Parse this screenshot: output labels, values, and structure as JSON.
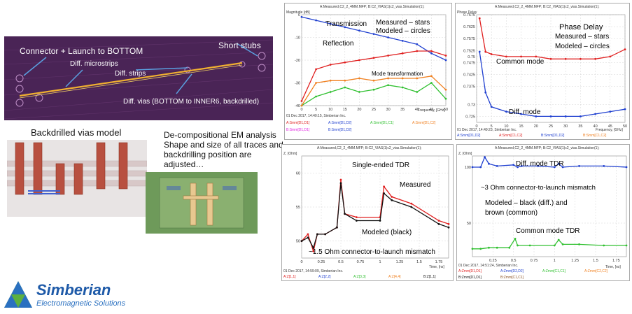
{
  "board": {
    "label_connector": "Connector + Launch to BOTTOM",
    "label_short_stubs": "Short stubs",
    "label_microstrips": "Diff. microstrips",
    "label_strips": "Diff. strips",
    "label_vias": "Diff. vias (BOTTOM to INNER6, backdrilled)"
  },
  "vias_model": {
    "title": "Backdrilled vias model"
  },
  "em_analysis": {
    "line1": "De-compositional EM analysis",
    "line2": "Shape and size of all traces and",
    "line3": "backdrilling position are",
    "line4": "adjusted…"
  },
  "chart1": {
    "header": "A:Measured,C2_2_4MM.MFP; B:C2_VIAS(1)c2_vias.Simulation(1);",
    "ylabel": "Magnitude [dB]",
    "xlabel": "Frequency, [GHz]",
    "footer": "01 Dec 2017, 14:40:15, Simberian Inc.",
    "ann_transmission": "Transmission",
    "ann_reflection": "Reflection",
    "ann_measured": "Measured – stars",
    "ann_modeled": "Modeled – circles",
    "ann_mode": "Mode transformation",
    "legend": [
      "A:Smm[D1,D1]",
      "A:Smm[D1,D2]",
      "A:Smm[D1,C1]",
      "A:Smm[D1,C2]",
      "B:Smm[D1,D1]",
      "B:Smm[D1,D2]"
    ]
  },
  "chart2": {
    "header": "A:Measured,C2_2_4MM.MFP; B:C2_VIAS(1)c2_vias.Simulation(1);",
    "ylabel": "Phase Delay",
    "xlabel": "Frequency, [GHz]",
    "footer": "01 Dec 2017, 14:49:23, Simberian Inc.",
    "ann_phase": "Phase Delay",
    "ann_measured": "Measured – stars",
    "ann_modeled": "Modeled – circles",
    "ann_common": "Common mode",
    "ann_diff": "Diff. mode",
    "legend": [
      "A:Smm[D1,D2]",
      "A:Smm[C1,C2]",
      "B:Smm[D1,D2]",
      "B:Smm[C1,C2]"
    ]
  },
  "chart3": {
    "header": "A:Measured,C2_2_4MM.MFP; B:C2_VIAS(1)c2_vias.Simulation(1);",
    "ylabel": "Z, [Ohm]",
    "xlabel": "Time, [ns]",
    "footer": "01 Dec 2017, 14:59:09, Simberian Inc.",
    "ann_tdr": "Single-ended TDR",
    "ann_measured": "Measured",
    "ann_modeled": "Modeled (black)",
    "ann_mismatch": "~1.5 Ohm connector-to-launch mismatch",
    "legend": [
      "A:Z[1,1]",
      "A:Z[2,2]",
      "A:Z[3,3]",
      "A:Z[4,4]",
      "B:Z[1,1]"
    ]
  },
  "chart4": {
    "header": "A:Measured,C2_2_4MM.MFP; B:C2_VIAS(1)c2_vias.Simulation(1);",
    "ylabel": "Z, [Ohm]",
    "xlabel": "Time, [ns]",
    "footer": "01 Dec 2017, 14:51:24, Simberian Inc.",
    "ann_diff_tdr": "Diff. mode TDR",
    "ann_mismatch": "~3 Ohm connector-to-launch mismatch",
    "ann_modeled1": "Modeled – black (diff.) and",
    "ann_modeled2": "brown (common)",
    "ann_common_tdr": "Common mode TDR",
    "legend": [
      "A:Zmm[D1,D1]",
      "A:Zmm[D2,D2]",
      "A:Zmm[C1,C1]",
      "A:Zmm[C2,C2]",
      "B:Zmm[D1,D1]",
      "B:Zmm[C1,C1]"
    ]
  },
  "chart_data": [
    {
      "type": "line",
      "xlabel": "Frequency, [GHz]",
      "ylabel": "Magnitude [dB]",
      "xlim": [
        0,
        50
      ],
      "ylim": [
        -40,
        0
      ],
      "x_ticks": [
        0,
        5,
        10,
        15,
        20,
        25,
        30,
        35,
        40,
        45,
        50
      ],
      "y_ticks": [
        0,
        -10,
        -20,
        -30,
        -40
      ],
      "series": [
        {
          "name": "A:Smm[D1,D2]",
          "x": [
            0,
            5,
            10,
            15,
            20,
            25,
            30,
            35,
            40,
            45,
            50
          ],
          "y": [
            -1,
            -2.5,
            -4,
            -5.5,
            -7,
            -8.5,
            -10,
            -11.5,
            -13,
            -17,
            -20
          ]
        },
        {
          "name": "A:Smm[D1,D1]",
          "x": [
            0,
            5,
            10,
            15,
            20,
            25,
            30,
            35,
            40,
            45,
            50
          ],
          "y": [
            -38,
            -24,
            -22,
            -21,
            -20,
            -19,
            -18,
            -17,
            -16,
            -16,
            -18
          ]
        },
        {
          "name": "A:Smm[D1,C1]",
          "x": [
            0,
            5,
            10,
            15,
            20,
            25,
            30,
            35,
            40,
            45,
            50
          ],
          "y": [
            -40,
            -36,
            -34,
            -32,
            -34,
            -33,
            -31,
            -32,
            -34,
            -30,
            -37
          ]
        },
        {
          "name": "A:Smm[D1,C2]",
          "x": [
            0,
            5,
            10,
            15,
            20,
            25,
            30,
            35,
            40,
            45,
            50
          ],
          "y": [
            -40,
            -30,
            -29,
            -29,
            -28,
            -29,
            -28,
            -28,
            -28,
            -27,
            -33
          ]
        }
      ]
    },
    {
      "type": "line",
      "xlabel": "Frequency, [GHz]",
      "ylabel": "Phase Delay",
      "xlim": [
        0,
        50
      ],
      "ylim": [
        0.7225,
        0.7675
      ],
      "x_ticks": [
        0,
        5,
        10,
        15,
        20,
        25,
        30,
        35,
        40,
        45,
        50
      ],
      "y_ticks": [
        0.7675,
        0.7625,
        0.7575,
        0.7525,
        0.75,
        0.7475,
        0.7425,
        0.7375,
        0.73,
        0.725
      ],
      "series": [
        {
          "name": "A:Smm[C1,C2]",
          "x": [
            1,
            3,
            5,
            10,
            15,
            20,
            25,
            30,
            35,
            40,
            45,
            50
          ],
          "y": [
            0.766,
            0.752,
            0.751,
            0.75,
            0.75,
            0.75,
            0.749,
            0.749,
            0.749,
            0.749,
            0.75,
            0.753
          ]
        },
        {
          "name": "A:Smm[D1,D2]",
          "x": [
            1,
            3,
            5,
            10,
            15,
            20,
            25,
            30,
            35,
            40,
            45,
            50
          ],
          "y": [
            0.752,
            0.735,
            0.729,
            0.727,
            0.726,
            0.725,
            0.725,
            0.725,
            0.725,
            0.726,
            0.727,
            0.728
          ]
        }
      ]
    },
    {
      "type": "line",
      "xlabel": "Time, [ns]",
      "ylabel": "Z, [Ohm]",
      "xlim": [
        0,
        1.875
      ],
      "ylim": [
        47.5,
        62.5
      ],
      "x_ticks": [
        0,
        0.25,
        0.5,
        0.75,
        1,
        1.25,
        1.5,
        1.75
      ],
      "y_ticks": [
        60,
        55,
        50
      ],
      "series": [
        {
          "name": "A:Z[1,1]",
          "x": [
            0,
            0.08,
            0.15,
            0.2,
            0.3,
            0.45,
            0.5,
            0.55,
            0.7,
            1.0,
            1.05,
            1.15,
            1.4,
            1.75,
            1.875
          ],
          "y": [
            50,
            51,
            48.5,
            51,
            51,
            52,
            59,
            54,
            53.5,
            53.5,
            58,
            56.5,
            55.5,
            53,
            52.5
          ]
        },
        {
          "name": "B:Z[1,1]",
          "x": [
            0,
            0.08,
            0.15,
            0.2,
            0.3,
            0.45,
            0.5,
            0.55,
            0.7,
            1.0,
            1.05,
            1.15,
            1.4,
            1.75,
            1.875
          ],
          "y": [
            50,
            50.5,
            49,
            51,
            51,
            52,
            58.5,
            54,
            53,
            53,
            57,
            56,
            55,
            52.5,
            52
          ]
        }
      ]
    },
    {
      "type": "line",
      "xlabel": "Time, [ns]",
      "ylabel": "Z, [Ohm]",
      "xlim": [
        0,
        1.875
      ],
      "ylim": [
        20,
        110
      ],
      "x_ticks": [
        0.25,
        0.5,
        0.75,
        1,
        1.25,
        1.5,
        1.75
      ],
      "y_ticks": [
        100,
        50
      ],
      "series": [
        {
          "name": "A:Zmm[D1,D1]",
          "x": [
            0,
            0.1,
            0.15,
            0.2,
            0.3,
            0.5,
            0.55,
            0.6,
            0.8,
            1.0,
            1.05,
            1.1,
            1.3,
            1.6,
            1.875
          ],
          "y": [
            100,
            100,
            109,
            103,
            101,
            102,
            100,
            101,
            101,
            100,
            103,
            100,
            101,
            101,
            100
          ]
        },
        {
          "name": "A:Zmm[C1,C1]",
          "x": [
            0,
            0.1,
            0.2,
            0.3,
            0.45,
            0.52,
            0.55,
            0.7,
            1.0,
            1.05,
            1.1,
            1.3,
            1.6,
            1.875
          ],
          "y": [
            27,
            27,
            28,
            28,
            28,
            36,
            30,
            30,
            30,
            35,
            31,
            31,
            30,
            30
          ]
        }
      ]
    }
  ],
  "logo": {
    "name": "Simberian",
    "tagline": "Electromagnetic Solutions"
  },
  "colors": {
    "board_bg": "#4a2456",
    "trace": "#f0b030",
    "arrow": "#5aa0e0",
    "red": "#e02020",
    "blue": "#2040d0",
    "green": "#30c030",
    "orange": "#f08020",
    "magenta": "#e020e0",
    "black": "#111111"
  }
}
